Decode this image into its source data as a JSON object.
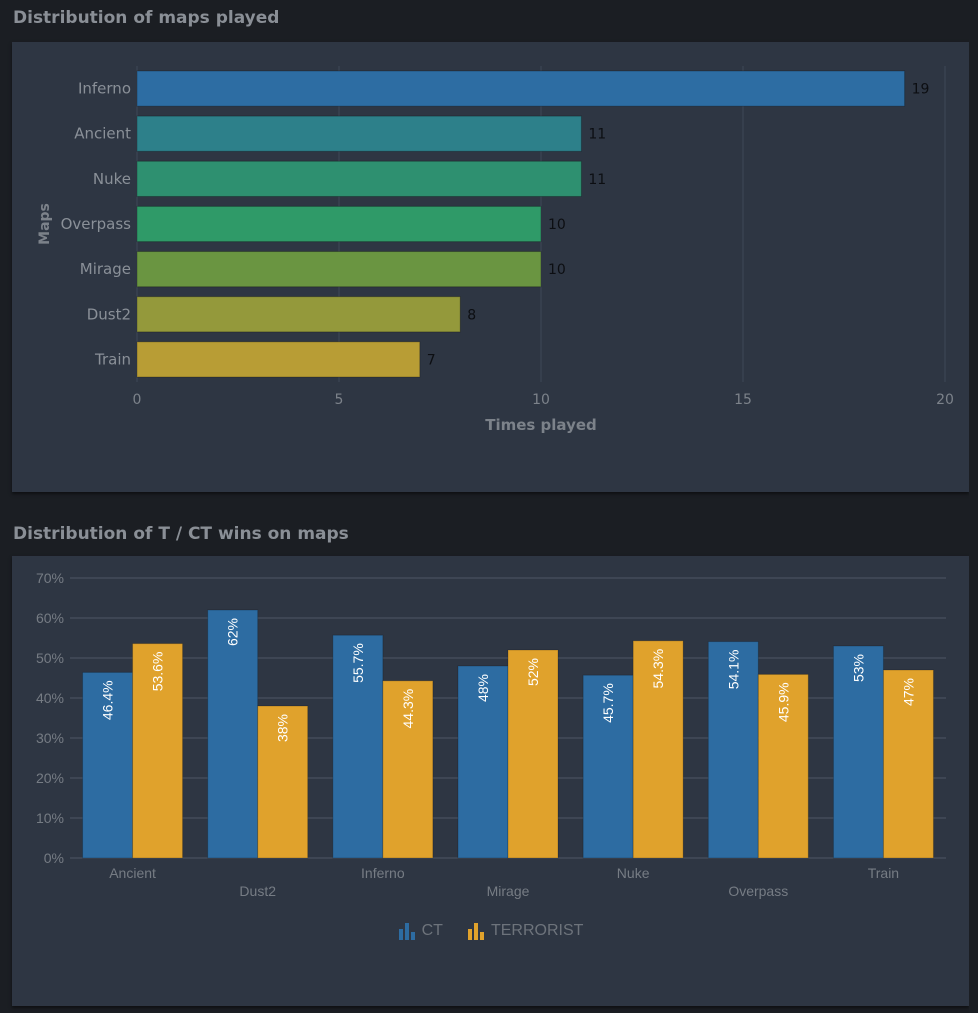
{
  "sections": {
    "maps_played_title": "Distribution of maps played",
    "wins_title": "Distribution of T / CT wins on maps"
  },
  "chart_data": [
    {
      "type": "bar",
      "orientation": "horizontal",
      "title": "Distribution of maps played",
      "xlabel": "Times played",
      "ylabel": "Maps",
      "categories": [
        "Inferno",
        "Ancient",
        "Nuke",
        "Overpass",
        "Mirage",
        "Dust2",
        "Train"
      ],
      "values": [
        19,
        11,
        11,
        10,
        10,
        8,
        7
      ],
      "colors": [
        "#2d6da3",
        "#2d808a",
        "#2e9070",
        "#2f9a68",
        "#6a9541",
        "#94993b",
        "#b89d35"
      ],
      "xlim": [
        0,
        20
      ],
      "xticks": [
        "0",
        "5",
        "10",
        "15",
        "20"
      ],
      "grid": true,
      "data_labels": [
        "19",
        "11",
        "11",
        "10",
        "10",
        "8",
        "7"
      ]
    },
    {
      "type": "bar",
      "orientation": "vertical",
      "title": "Distribution of T / CT wins on maps",
      "categories": [
        "Ancient",
        "Dust2",
        "Inferno",
        "Mirage",
        "Nuke",
        "Overpass",
        "Train"
      ],
      "series": [
        {
          "name": "CT",
          "color": "#2d6ca2",
          "values": [
            46.4,
            62,
            55.7,
            48,
            45.7,
            54.1,
            53
          ],
          "labels": [
            "46.4%",
            "62%",
            "55.7%",
            "48%",
            "45.7%",
            "54.1%",
            "53%"
          ]
        },
        {
          "name": "TERRORIST",
          "color": "#e0a22c",
          "values": [
            53.6,
            38,
            44.3,
            52,
            54.3,
            45.9,
            47
          ],
          "labels": [
            "53.6%",
            "38%",
            "44.3%",
            "52%",
            "54.3%",
            "45.9%",
            "47%"
          ]
        }
      ],
      "ylim": [
        0,
        70
      ],
      "yticks": [
        "0%",
        "10%",
        "20%",
        "30%",
        "40%",
        "50%",
        "60%",
        "70%"
      ],
      "grid": true,
      "legend": "bottom-center"
    }
  ]
}
